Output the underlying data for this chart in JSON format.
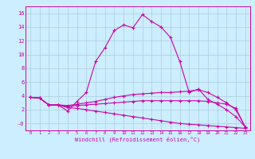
{
  "xlabel": "Windchill (Refroidissement éolien,°C)",
  "x_values": [
    0,
    1,
    2,
    3,
    4,
    5,
    6,
    7,
    8,
    9,
    10,
    11,
    12,
    13,
    14,
    15,
    16,
    17,
    18,
    19,
    20,
    21,
    22,
    23
  ],
  "line1": [
    3.8,
    3.7,
    2.7,
    2.7,
    1.8,
    3.2,
    4.5,
    9.0,
    11.0,
    13.5,
    14.3,
    13.9,
    15.8,
    14.8,
    14.0,
    12.5,
    9.0,
    4.5,
    5.0,
    3.5,
    2.8,
    2.0,
    1.0,
    -0.5
  ],
  "line2": [
    3.8,
    3.7,
    2.7,
    2.7,
    2.6,
    2.8,
    3.0,
    3.2,
    3.5,
    3.8,
    4.0,
    4.2,
    4.3,
    4.4,
    4.5,
    4.5,
    4.6,
    4.7,
    4.9,
    4.5,
    3.8,
    3.0,
    2.0,
    -0.5
  ],
  "line3": [
    3.8,
    3.7,
    2.7,
    2.7,
    2.5,
    2.6,
    2.7,
    2.8,
    2.9,
    3.0,
    3.1,
    3.2,
    3.3,
    3.3,
    3.3,
    3.3,
    3.3,
    3.3,
    3.3,
    3.2,
    3.0,
    2.8,
    2.2,
    -0.5
  ],
  "line4": [
    3.8,
    3.7,
    2.7,
    2.7,
    2.3,
    2.2,
    2.0,
    1.8,
    1.6,
    1.4,
    1.2,
    1.0,
    0.8,
    0.6,
    0.4,
    0.2,
    0.0,
    -0.1,
    -0.2,
    -0.3,
    -0.4,
    -0.5,
    -0.6,
    -0.7
  ],
  "line_color": "#cc00aa",
  "bg_color": "#cceeff",
  "grid_color": "#aaccdd",
  "ylim": [
    -1,
    17
  ],
  "xlim": [
    -0.5,
    23.5
  ]
}
